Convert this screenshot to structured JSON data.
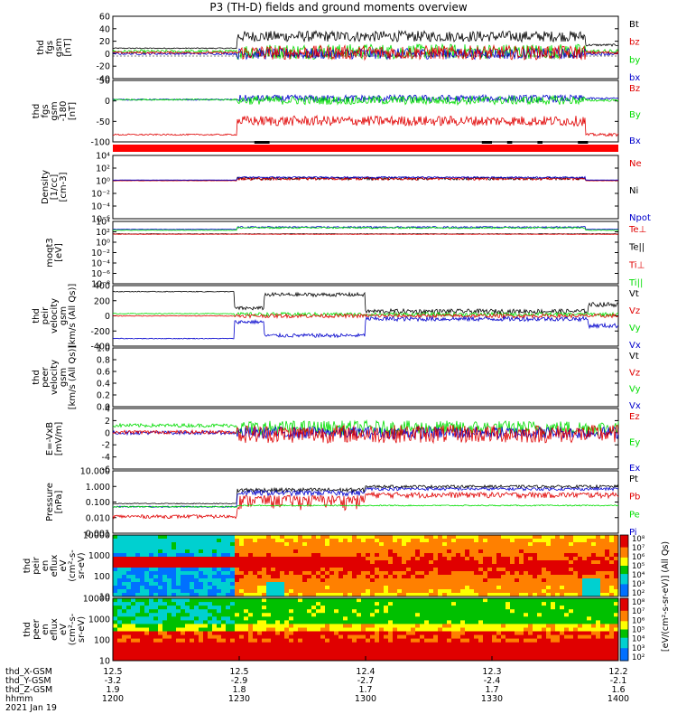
{
  "title": "P3 (TH-D) fields and ground moments overview",
  "colors": {
    "black": "#000000",
    "red": "#e00000",
    "green": "#00dd00",
    "blue": "#0000cc"
  },
  "panels": [
    {
      "id": "fgs",
      "ylabel": [
        "thd",
        "fgs",
        "gsm",
        "[nT]"
      ],
      "ticks": [
        "60",
        "40",
        "20",
        "0",
        "-20",
        "-40"
      ],
      "legend": [
        {
          "text": "Bt",
          "color": "black"
        },
        {
          "text": "bz",
          "color": "red"
        },
        {
          "text": "by",
          "color": "green"
        },
        {
          "text": "bx",
          "color": "blue"
        }
      ]
    },
    {
      "id": "fgs_smooth",
      "ylabel": [
        "thd",
        "fgs",
        "gsm",
        "-180",
        "[nT]"
      ],
      "ticks": [
        "50",
        "0",
        "-50",
        "-100"
      ],
      "legend": [
        {
          "text": "Bz",
          "color": "red"
        },
        {
          "text": "By",
          "color": "green"
        },
        {
          "text": "Bx",
          "color": "blue"
        }
      ]
    },
    {
      "id": "density",
      "ylabel": [
        "Density",
        "[1/cc]",
        "[cm-3]"
      ],
      "ticks": [
        "10⁴",
        "10²",
        "10⁰",
        "10⁻²",
        "10⁻⁴",
        "10⁻⁶"
      ],
      "legend": [
        {
          "text": "Ne",
          "color": "red"
        },
        {
          "text": "Ni",
          "color": "black"
        },
        {
          "text": "Npot",
          "color": "blue"
        }
      ]
    },
    {
      "id": "temp",
      "ylabel": [
        "moqt3",
        "[eV]"
      ],
      "ticks": [
        "10⁴",
        "10²",
        "10⁰",
        "10⁻²",
        "10⁻⁴",
        "10⁻⁶",
        "10⁻⁸"
      ],
      "legend": [
        {
          "text": "Te⊥",
          "color": "red"
        },
        {
          "text": "Te||",
          "color": "black"
        },
        {
          "text": "Ti⊥",
          "color": "red"
        },
        {
          "text": "Ti||",
          "color": "green"
        }
      ]
    },
    {
      "id": "peir_vel",
      "ylabel": [
        "thd",
        "peir",
        "velocity",
        "gsm",
        "[km/s (All Qs)]"
      ],
      "ticks": [
        "400",
        "200",
        "0",
        "-200",
        "-400"
      ],
      "legend": [
        {
          "text": "Vt",
          "color": "black"
        },
        {
          "text": "Vz",
          "color": "red"
        },
        {
          "text": "Vy",
          "color": "green"
        },
        {
          "text": "Vx",
          "color": "blue"
        }
      ]
    },
    {
      "id": "peer_vel",
      "ylabel": [
        "thd",
        "peer",
        "velocity",
        "gsm",
        "[km/s (All Qs)]"
      ],
      "ticks": [
        "1.0",
        "0.8",
        "0.6",
        "0.4",
        "0.2",
        "0.0"
      ],
      "legend": [
        {
          "text": "Vt",
          "color": "black"
        },
        {
          "text": "Vz",
          "color": "red"
        },
        {
          "text": "Vy",
          "color": "green"
        },
        {
          "text": "Vx",
          "color": "blue"
        }
      ]
    },
    {
      "id": "efield",
      "ylabel": [
        "E=-VxB",
        "[mV/m]"
      ],
      "ticks": [
        "4",
        "2",
        "0",
        "-2",
        "-4",
        "-6"
      ],
      "legend": [
        {
          "text": "Ez",
          "color": "red"
        },
        {
          "text": "Ey",
          "color": "green"
        },
        {
          "text": "Ex",
          "color": "blue"
        }
      ]
    },
    {
      "id": "pressure",
      "ylabel": [
        "Pressure",
        "[nPa]"
      ],
      "ticks": [
        "10.000",
        "1.000",
        "0.100",
        "0.010",
        "0.001"
      ],
      "legend": [
        {
          "text": "Pt",
          "color": "black"
        },
        {
          "text": "Pb",
          "color": "red"
        },
        {
          "text": "Pe",
          "color": "green"
        },
        {
          "text": "Pi",
          "color": "blue"
        }
      ]
    },
    {
      "id": "peir_spec",
      "ylabel": [
        "thd",
        "peir",
        "en",
        "eflux",
        "eV",
        "(cm²-s-",
        "sr-eV)"
      ],
      "ticks": [
        "10000",
        "1000",
        "100",
        "10"
      ]
    },
    {
      "id": "peer_spec",
      "ylabel": [
        "thd",
        "peer",
        "en",
        "eflux",
        "eV",
        "(cm²-s-",
        "sr-eV)"
      ],
      "ticks": [
        "10000",
        "1000",
        "100",
        "10"
      ]
    }
  ],
  "colorbar": {
    "ticks": [
      "10⁸",
      "10⁷",
      "10⁶",
      "10⁵",
      "10⁴",
      "10³",
      "10²"
    ],
    "label": "[eV/(cm²-s-sr-eV)] (All Qs)"
  },
  "xaxis": {
    "rows": [
      {
        "label": "thd_X-GSM",
        "values": [
          "12.5",
          "12.5",
          "12.4",
          "12.3",
          "12.2"
        ]
      },
      {
        "label": "thd_Y-GSM",
        "values": [
          "-3.2",
          "-2.9",
          "-2.7",
          "-2.4",
          "-2.1"
        ]
      },
      {
        "label": "thd_Z-GSM",
        "values": [
          "1.9",
          "1.8",
          "1.7",
          "1.7",
          "1.6"
        ]
      },
      {
        "label": "hhmm",
        "values": [
          "1200",
          "1230",
          "1300",
          "1330",
          "1400"
        ]
      }
    ],
    "date": "2021 Jan 19"
  },
  "chart_data": {
    "type": "line",
    "title": "P3 (TH-D) fields and ground moments overview",
    "x": [
      "1200",
      "1230",
      "1300",
      "1330",
      "1400"
    ],
    "xlabel": "hhmm",
    "panels": [
      {
        "name": "thd fgs gsm",
        "ylim": [
          -50,
          65
        ],
        "series": [
          {
            "name": "Bt",
            "values": [
              5,
              25,
              28,
              30,
              12
            ]
          },
          {
            "name": "bz",
            "values": [
              -3,
              0,
              0,
              0,
              -2
            ]
          },
          {
            "name": "by",
            "values": [
              2,
              -5,
              -5,
              -4,
              0
            ]
          },
          {
            "name": "bx",
            "values": [
              -3,
              -3,
              -2,
              -3,
              -8
            ]
          }
        ]
      },
      {
        "name": "thd fgs gsm -180",
        "ylim": [
          -120,
          50
        ],
        "series": [
          {
            "name": "Bz",
            "values": [
              -100,
              -60,
              -65,
              -60,
              -105
            ]
          },
          {
            "name": "By",
            "values": [
              -10,
              0,
              -10,
              0,
              -5
            ]
          },
          {
            "name": "Bx",
            "values": [
              -10,
              10,
              5,
              10,
              -5
            ]
          }
        ]
      },
      {
        "name": "Density",
        "ylim": [
          1e-06,
          10000.0
        ],
        "scale": "log",
        "series": [
          {
            "name": "Ne",
            "values": [
              1,
              3,
              3,
              3,
              1
            ]
          },
          {
            "name": "Ni",
            "values": [
              1,
              3,
              3,
              3,
              1
            ]
          },
          {
            "name": "Npot",
            "values": [
              1,
              4,
              4,
              4,
              1
            ]
          }
        ]
      },
      {
        "name": "moqt3",
        "ylim": [
          1e-08,
          10000.0
        ],
        "scale": "log",
        "series": [
          {
            "name": "Te⊥",
            "values": [
              30,
              40,
              40,
              40,
              30
            ]
          },
          {
            "name": "Ti||",
            "values": [
              200,
              200,
              200,
              200,
              200
            ]
          }
        ]
      },
      {
        "name": "thd peir velocity gsm",
        "ylim": [
          -400,
          400
        ],
        "series": [
          {
            "name": "Vt",
            "values": [
              320,
              80,
              270,
              60,
              50
            ]
          },
          {
            "name": "Vz",
            "values": [
              20,
              -20,
              20,
              0,
              20
            ]
          },
          {
            "name": "Vy",
            "values": [
              40,
              20,
              20,
              10,
              20
            ]
          },
          {
            "name": "Vx",
            "values": [
              -310,
              -100,
              -260,
              -50,
              -60
            ]
          }
        ]
      },
      {
        "name": "E=-VxB",
        "ylim": [
          -6,
          4
        ],
        "series": [
          {
            "name": "Ez",
            "values": [
              0,
              0,
              0,
              0,
              0
            ]
          },
          {
            "name": "Ey",
            "values": [
              1,
              1.5,
              0.5,
              0.5,
              1
            ]
          },
          {
            "name": "Ex",
            "values": [
              0,
              0.5,
              0,
              0,
              0.5
            ]
          }
        ]
      },
      {
        "name": "Pressure",
        "ylim": [
          0.001,
          10
        ],
        "scale": "log",
        "series": [
          {
            "name": "Pt",
            "values": [
              0.08,
              0.8,
              0.4,
              1.0,
              0.8
            ]
          },
          {
            "name": "Pb",
            "values": [
              0.01,
              0.4,
              0.2,
              0.5,
              0.1
            ]
          },
          {
            "name": "Pe",
            "values": [
              0.05,
              0.07,
              0.06,
              0.08,
              0.07
            ]
          },
          {
            "name": "Pi",
            "values": [
              0.05,
              0.6,
              0.3,
              0.8,
              0.7
            ]
          }
        ]
      }
    ]
  }
}
